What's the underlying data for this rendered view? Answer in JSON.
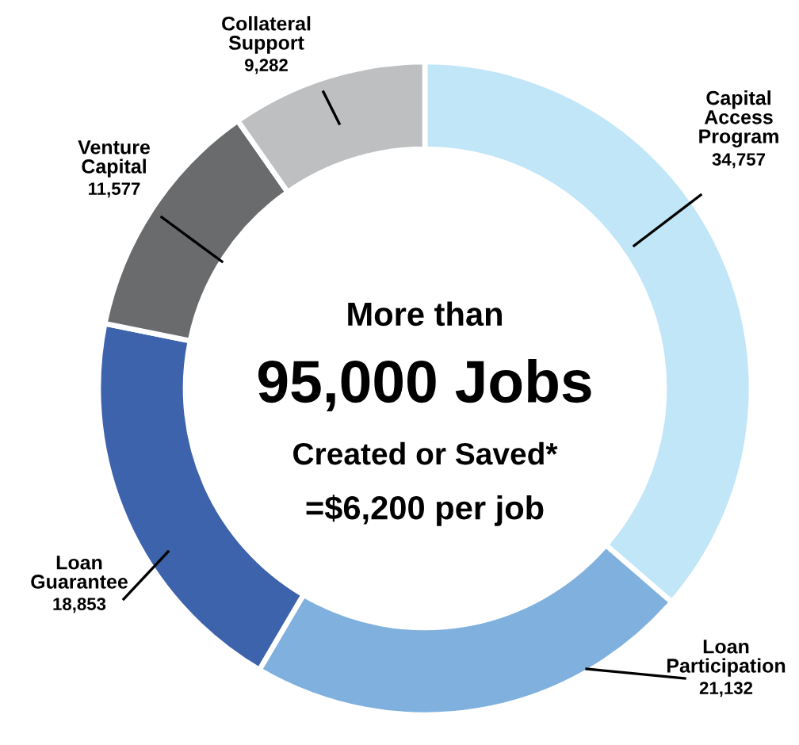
{
  "chart_data": {
    "type": "donut",
    "categories": [
      "Capital\nAccess\nProgram",
      "Loan\nParticipation",
      "Loan\nGuarantee",
      "Venture\nCapital",
      "Collateral\nSupport"
    ],
    "values": [
      34757,
      21132,
      18853,
      11577,
      9282
    ],
    "value_labels": [
      "34,757",
      "21,132",
      "18,853",
      "11,577",
      "9,282"
    ],
    "colors": [
      "#c0e6f8",
      "#7fb0de",
      "#3d63ad",
      "#6a6b6d",
      "#bdbfc1"
    ],
    "annotations": [
      "More than",
      "95,000 Jobs",
      "Created or Saved*",
      "=$6,200 per job"
    ]
  }
}
